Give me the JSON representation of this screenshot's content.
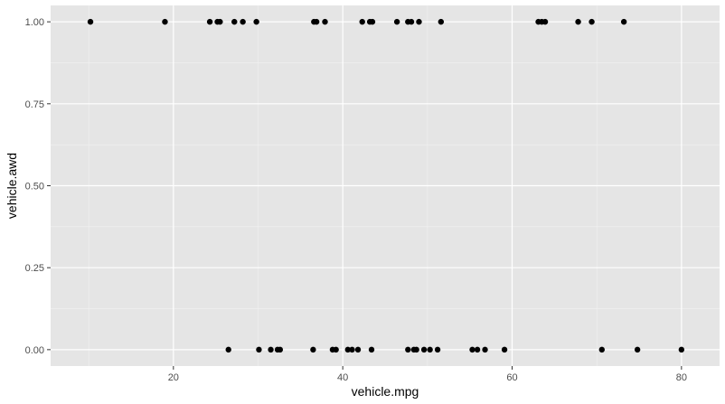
{
  "chart_data": {
    "type": "scatter",
    "xlabel": "vehicle.mpg",
    "ylabel": "vehicle.awd",
    "xlim": [
      5.5,
      84.5
    ],
    "ylim": [
      -0.05,
      1.05
    ],
    "x_ticks": [
      20,
      40,
      60,
      80
    ],
    "x_tick_labels": [
      "20",
      "40",
      "60",
      "80"
    ],
    "x_minor_ticks": [
      10,
      30,
      50,
      70
    ],
    "y_ticks": [
      0,
      0.25,
      0.5,
      0.75,
      1
    ],
    "y_tick_labels": [
      "0.00",
      "0.25",
      "0.50",
      "0.75",
      "1.00"
    ],
    "y_minor_ticks": [
      0.125,
      0.375,
      0.625,
      0.875
    ],
    "grid": true,
    "background": "#e5e5e5",
    "grid_major_color": "#ffffff",
    "point_color": "#000000",
    "series": [
      {
        "points": [
          {
            "x": 10.2,
            "y": 1
          },
          {
            "x": 19.0,
            "y": 1
          },
          {
            "x": 24.3,
            "y": 1
          },
          {
            "x": 25.2,
            "y": 1
          },
          {
            "x": 25.5,
            "y": 1
          },
          {
            "x": 27.2,
            "y": 1
          },
          {
            "x": 28.2,
            "y": 1
          },
          {
            "x": 29.8,
            "y": 1
          },
          {
            "x": 36.6,
            "y": 1
          },
          {
            "x": 36.9,
            "y": 1
          },
          {
            "x": 37.9,
            "y": 1
          },
          {
            "x": 42.3,
            "y": 1
          },
          {
            "x": 43.2,
            "y": 1
          },
          {
            "x": 43.5,
            "y": 1
          },
          {
            "x": 46.4,
            "y": 1
          },
          {
            "x": 47.7,
            "y": 1
          },
          {
            "x": 48.1,
            "y": 1
          },
          {
            "x": 49.0,
            "y": 1
          },
          {
            "x": 51.6,
            "y": 1
          },
          {
            "x": 63.1,
            "y": 1
          },
          {
            "x": 63.5,
            "y": 1
          },
          {
            "x": 63.9,
            "y": 1
          },
          {
            "x": 67.8,
            "y": 1
          },
          {
            "x": 69.4,
            "y": 1
          },
          {
            "x": 73.2,
            "y": 1
          },
          {
            "x": 26.5,
            "y": 0
          },
          {
            "x": 30.1,
            "y": 0
          },
          {
            "x": 31.5,
            "y": 0
          },
          {
            "x": 32.3,
            "y": 0
          },
          {
            "x": 32.6,
            "y": 0
          },
          {
            "x": 36.5,
            "y": 0
          },
          {
            "x": 38.8,
            "y": 0
          },
          {
            "x": 39.2,
            "y": 0
          },
          {
            "x": 40.6,
            "y": 0
          },
          {
            "x": 41.1,
            "y": 0
          },
          {
            "x": 41.8,
            "y": 0
          },
          {
            "x": 43.4,
            "y": 0
          },
          {
            "x": 47.7,
            "y": 0
          },
          {
            "x": 48.4,
            "y": 0
          },
          {
            "x": 48.7,
            "y": 0
          },
          {
            "x": 49.6,
            "y": 0
          },
          {
            "x": 50.3,
            "y": 0
          },
          {
            "x": 51.2,
            "y": 0
          },
          {
            "x": 55.3,
            "y": 0
          },
          {
            "x": 55.9,
            "y": 0
          },
          {
            "x": 56.8,
            "y": 0
          },
          {
            "x": 59.1,
            "y": 0
          },
          {
            "x": 70.6,
            "y": 0
          },
          {
            "x": 74.8,
            "y": 0
          },
          {
            "x": 80.0,
            "y": 0
          }
        ]
      }
    ]
  }
}
